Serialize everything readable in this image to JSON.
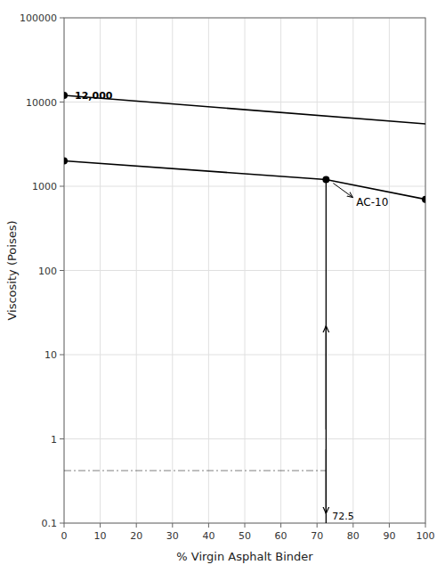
{
  "chart_data": {
    "type": "line",
    "log": "y",
    "grid": true,
    "color": "#000000",
    "x_label": "% Virgin Asphalt Binder",
    "y_label": "Viscosity (Poises)",
    "xlim": [
      0,
      100
    ],
    "ylim": [
      0.1,
      100000
    ],
    "xticks": [
      0,
      10,
      20,
      30,
      40,
      50,
      60,
      70,
      80,
      90,
      100
    ],
    "yticks": [
      0.1,
      1,
      10,
      100,
      1000,
      10000,
      100000
    ],
    "series": [
      {
        "type": "line",
        "x": [
          0,
          100
        ],
        "values": [
          12000,
          5500
        ]
      },
      {
        "type": "line",
        "x": [
          0,
          72.5,
          100
        ],
        "values": [
          2000,
          1200,
          700
        ]
      },
      {
        "type": "scatter",
        "marker": "circle",
        "x": [
          0,
          0,
          72.5,
          100
        ],
        "values": [
          12000,
          2000,
          1200,
          700
        ]
      }
    ],
    "annotations": [
      {
        "text": "12,000",
        "x": 0,
        "y": 12000
      },
      {
        "text": "AC-10",
        "x": 72.5,
        "y": 1200
      },
      {
        "text": "72.5",
        "x": 72.5,
        "y": 0.1
      }
    ],
    "reference_lines": [
      {
        "x": 72.5,
        "y_from": 0.1,
        "y_to": 1200
      },
      {
        "y": 0.42,
        "x_from": 0,
        "x_to": 72.5,
        "line_style": "dashdot"
      }
    ],
    "arrows": [
      {
        "x": 72.5,
        "y_from": 1.3,
        "y_to": 22
      },
      {
        "x": 72.5,
        "y_from": 0.75,
        "y_to": 0.13
      }
    ]
  }
}
